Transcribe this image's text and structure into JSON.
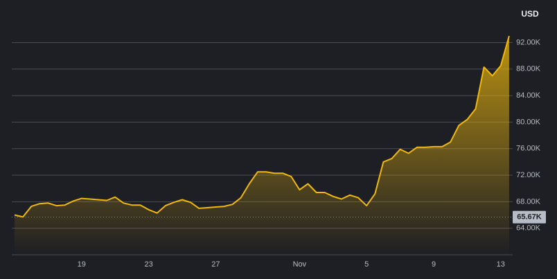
{
  "chart_data": {
    "type": "area",
    "y_axis_label": "USD",
    "categories": [
      null,
      null,
      null,
      null,
      null,
      null,
      null,
      null,
      "19",
      null,
      null,
      null,
      null,
      null,
      null,
      null,
      "23",
      null,
      null,
      null,
      null,
      null,
      null,
      null,
      "27",
      null,
      null,
      null,
      null,
      null,
      null,
      null,
      null,
      null,
      "Nov",
      null,
      null,
      null,
      null,
      null,
      null,
      null,
      "5",
      null,
      null,
      null,
      null,
      null,
      null,
      null,
      "9",
      null,
      null,
      null,
      null,
      null,
      null,
      null,
      "13",
      null
    ],
    "values": [
      66000,
      65700,
      67300,
      67700,
      67800,
      67400,
      67500,
      68100,
      68500,
      68400,
      68300,
      68200,
      68700,
      67800,
      67500,
      67500,
      66800,
      66300,
      67400,
      67900,
      68300,
      67900,
      67000,
      67100,
      67200,
      67300,
      67600,
      68600,
      70700,
      72500,
      72500,
      72300,
      72300,
      71800,
      69800,
      70700,
      69400,
      69400,
      68800,
      68400,
      69000,
      68600,
      67400,
      69200,
      74000,
      74500,
      75900,
      75300,
      76200,
      76200,
      76300,
      76300,
      77000,
      79500,
      80400,
      82000,
      88300,
      87000,
      88500,
      93000
    ],
    "color": "#f0b90b",
    "ylim": [
      60000,
      98000
    ],
    "yticks": [
      {
        "value": 64000,
        "label": "64.00K"
      },
      {
        "value": 68000,
        "label": "68.00K"
      },
      {
        "value": 72000,
        "label": "72.00K"
      },
      {
        "value": 76000,
        "label": "76.00K"
      },
      {
        "value": 80000,
        "label": "80.00K"
      },
      {
        "value": 84000,
        "label": "84.00K"
      },
      {
        "value": 88000,
        "label": "88.00K"
      },
      {
        "value": 92000,
        "label": "92.00K"
      }
    ],
    "grid": true,
    "price_line": {
      "value": 65670,
      "label": "65.67K"
    }
  }
}
